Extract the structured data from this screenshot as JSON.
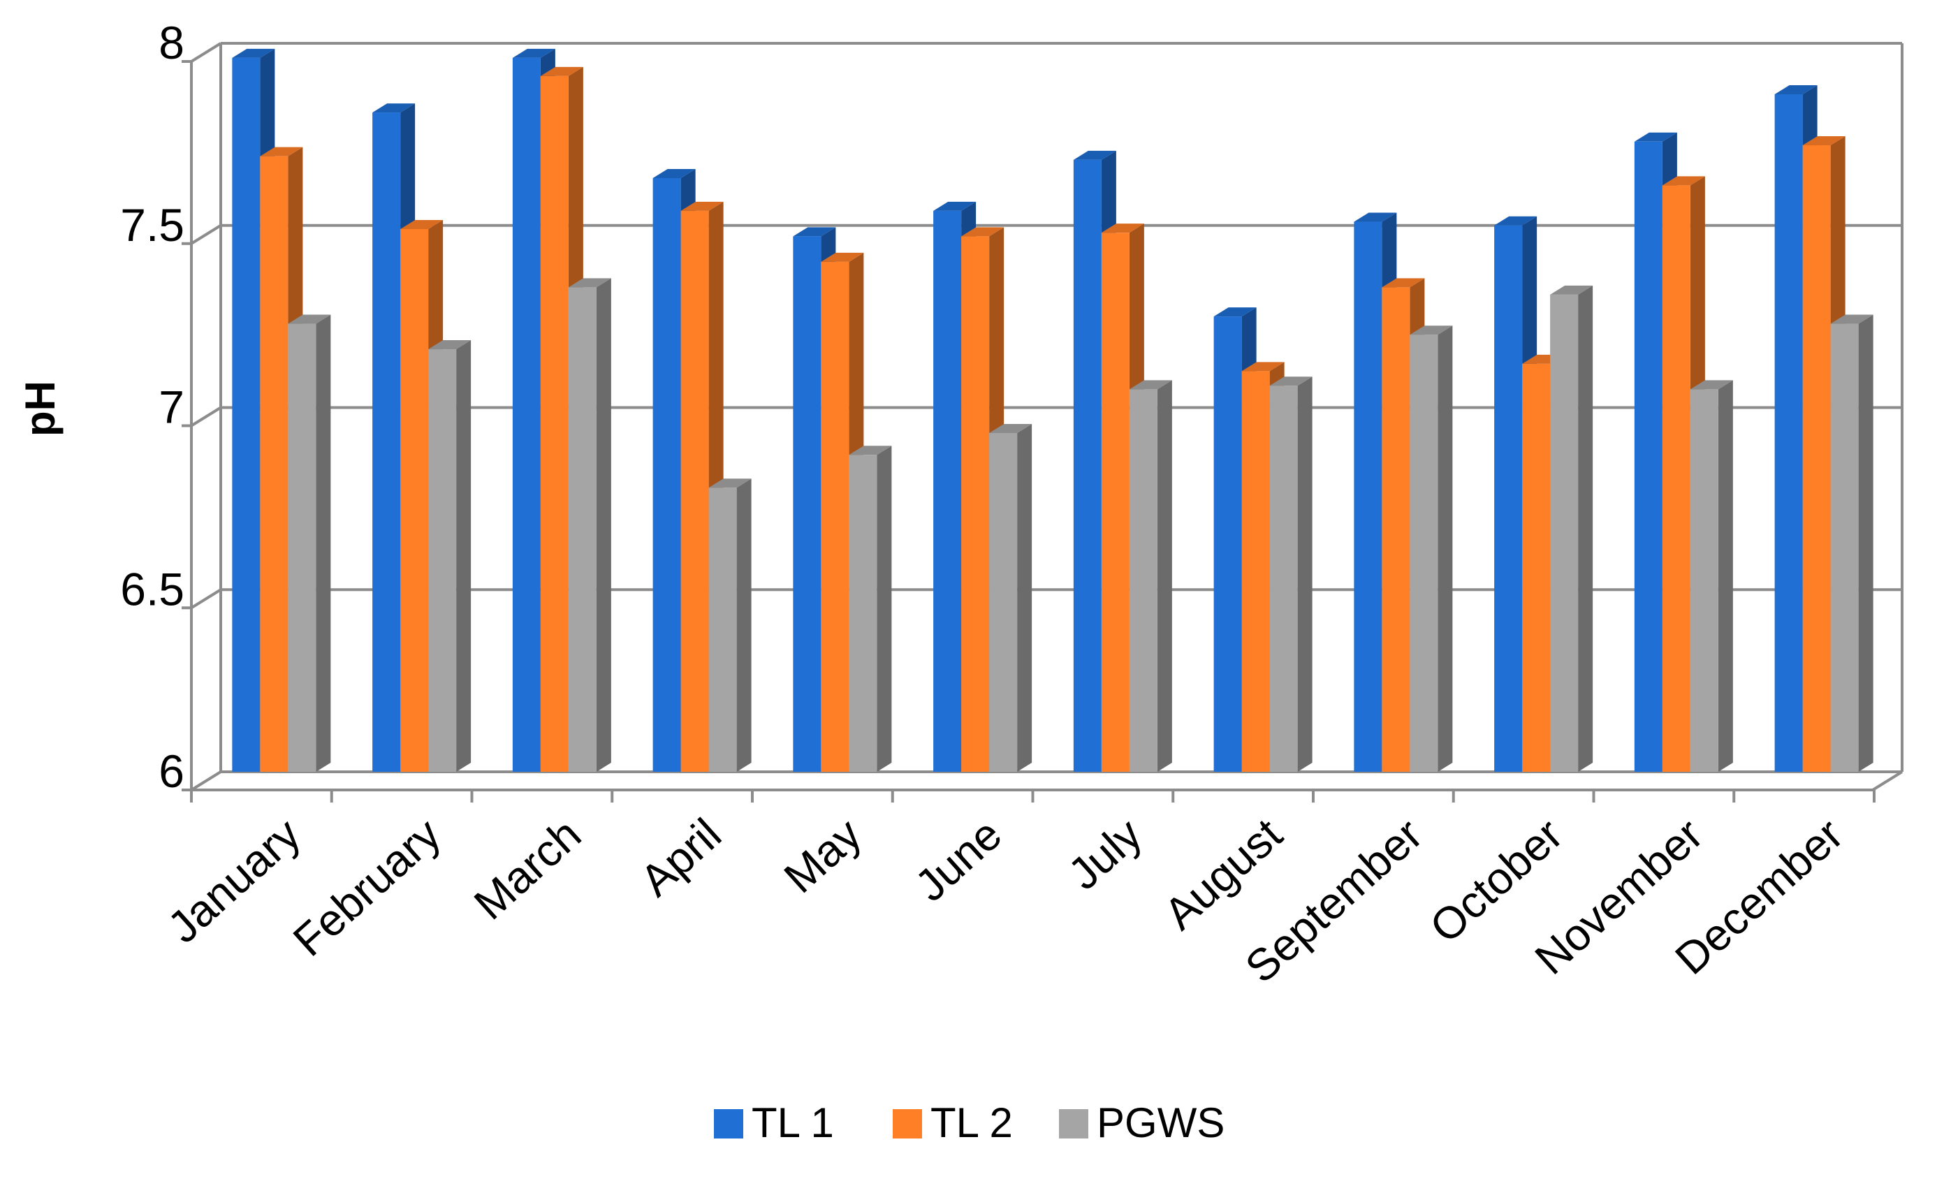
{
  "chart_data": {
    "type": "bar",
    "title": "",
    "xlabel": "",
    "ylabel": "pH",
    "ylim": [
      6,
      8
    ],
    "yticks": [
      6,
      6.5,
      7,
      7.5,
      8
    ],
    "ytick_labels": [
      "6",
      "6.5",
      "7",
      "7.5",
      "8"
    ],
    "grid": true,
    "legend_position": "bottom",
    "categories": [
      "January",
      "February",
      "March",
      "April",
      "May",
      "June",
      "July",
      "August",
      "September",
      "October",
      "November",
      "December"
    ],
    "series": [
      {
        "name": "TL 1",
        "color": "#1F6FD4",
        "values": [
          7.96,
          7.81,
          7.96,
          7.63,
          7.47,
          7.54,
          7.68,
          7.25,
          7.51,
          7.5,
          7.73,
          7.86
        ]
      },
      {
        "name": "TL 2",
        "color": "#FF7F27",
        "values": [
          7.69,
          7.49,
          7.91,
          7.54,
          7.4,
          7.47,
          7.48,
          7.1,
          7.33,
          7.12,
          7.61,
          7.72
        ]
      },
      {
        "name": "PGWS",
        "color": "#A5A5A5",
        "values": [
          7.23,
          7.16,
          7.33,
          6.78,
          6.87,
          6.93,
          7.05,
          7.06,
          7.2,
          7.31,
          7.05,
          7.23
        ]
      }
    ]
  }
}
